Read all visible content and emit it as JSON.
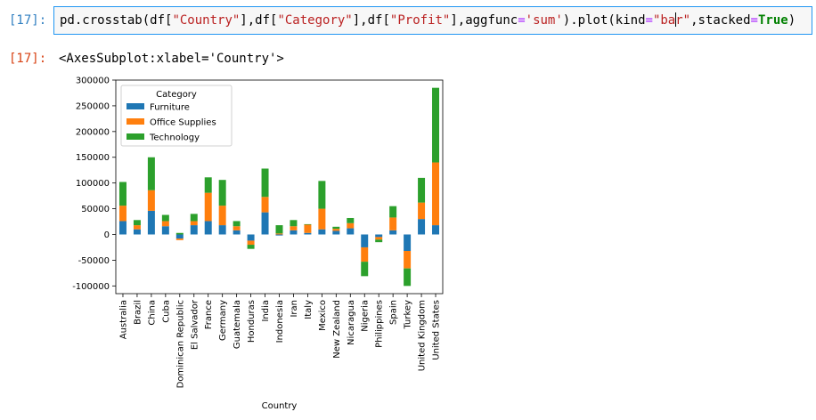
{
  "cell": {
    "input_prompt": "[17]:",
    "code_parts": [
      {
        "t": "pd.crosstab(df[",
        "c": ""
      },
      {
        "t": "\"Country\"",
        "c": "str"
      },
      {
        "t": "],df[",
        "c": ""
      },
      {
        "t": "\"Category\"",
        "c": "str"
      },
      {
        "t": "],df[",
        "c": ""
      },
      {
        "t": "\"Profit\"",
        "c": "str"
      },
      {
        "t": "],aggfunc",
        "c": ""
      },
      {
        "t": "=",
        "c": "op"
      },
      {
        "t": "'sum'",
        "c": "str"
      },
      {
        "t": ").plot(kind",
        "c": ""
      },
      {
        "t": "=",
        "c": "op"
      },
      {
        "t": "\"ba",
        "c": "str"
      },
      {
        "t": "",
        "c": "cursor"
      },
      {
        "t": "r\"",
        "c": "str"
      },
      {
        "t": ",stacked",
        "c": ""
      },
      {
        "t": "=",
        "c": "op"
      },
      {
        "t": "True",
        "c": "kw"
      },
      {
        "t": ")",
        "c": ""
      }
    ],
    "output_prompt": "[17]:",
    "output_text": "<AxesSubplot:xlabel='Country'>"
  },
  "chart_data": {
    "type": "bar",
    "stacked": true,
    "xlabel": "Country",
    "ylabel": "",
    "ylim": [
      -115000,
      300000
    ],
    "yticks": [
      -100000,
      -50000,
      0,
      50000,
      100000,
      150000,
      200000,
      250000,
      300000
    ],
    "grid": false,
    "legend": {
      "title": "Category",
      "placement": "top-left"
    },
    "categories": [
      "Australia",
      "Brazil",
      "China",
      "Cuba",
      "Dominican Republic",
      "El Salvador",
      "France",
      "Germany",
      "Guatemala",
      "Honduras",
      "India",
      "Indonesia",
      "Iran",
      "Italy",
      "Mexico",
      "New Zealand",
      "Nicaragua",
      "Nigeria",
      "Philippines",
      "Spain",
      "Turkey",
      "United Kingdom",
      "United States"
    ],
    "series": [
      {
        "name": "Furniture",
        "color": "#1f77b4",
        "values": [
          26000,
          10000,
          46000,
          16000,
          -8000,
          18000,
          26000,
          18000,
          8000,
          -12000,
          43000,
          -2000,
          8000,
          3000,
          10000,
          7000,
          12000,
          -25000,
          -5000,
          8000,
          -32000,
          30000,
          18000
        ]
      },
      {
        "name": "Office Supplies",
        "color": "#ff7f0e",
        "values": [
          30000,
          8000,
          40000,
          10000,
          -3000,
          8000,
          55000,
          38000,
          8000,
          -8000,
          30000,
          2000,
          8000,
          16000,
          40000,
          4000,
          10000,
          -28000,
          -5000,
          25000,
          -34000,
          32000,
          122000
        ]
      },
      {
        "name": "Technology",
        "color": "#2ca02c",
        "values": [
          46000,
          10000,
          64000,
          12000,
          3000,
          14000,
          30000,
          50000,
          10000,
          -8000,
          55000,
          16000,
          12000,
          1000,
          54000,
          4000,
          10000,
          -28000,
          -5000,
          22000,
          -34000,
          48000,
          145000
        ]
      }
    ]
  }
}
